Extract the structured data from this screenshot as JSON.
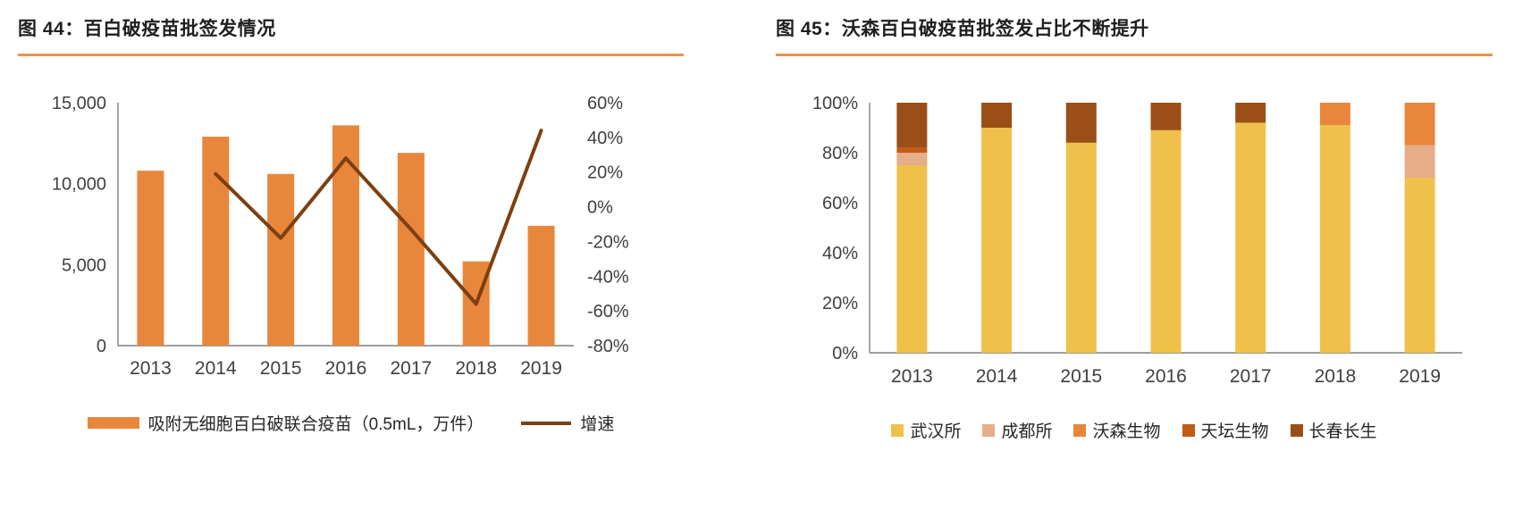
{
  "chart_data": [
    {
      "type": "bar",
      "combo": "bar+line",
      "title": "图 44：百白破疫苗批签发情况",
      "categories": [
        "2013",
        "2014",
        "2015",
        "2016",
        "2017",
        "2018",
        "2019"
      ],
      "bar_series": {
        "name": "吸附无细胞百白破联合疫苗（0.5mL，万件）",
        "values": [
          10800,
          12900,
          10600,
          13600,
          11900,
          5200,
          7400
        ],
        "color": "#E8863C",
        "axis": "left"
      },
      "line_series": {
        "name": "增速",
        "values": [
          null,
          19,
          -18,
          28,
          -13,
          -56,
          44
        ],
        "unit": "%",
        "color": "#7E3F10",
        "axis": "right"
      },
      "left_axis": {
        "min": 0,
        "max": 15000,
        "tick_values": [
          0,
          5000,
          10000,
          15000
        ],
        "tick_labels": [
          "0",
          "5,000",
          "10,000",
          "15,000"
        ]
      },
      "right_axis": {
        "min": -80,
        "max": 60,
        "tick_values": [
          -80,
          -60,
          -40,
          -20,
          0,
          20,
          40,
          60
        ],
        "tick_labels": [
          "-80%",
          "-60%",
          "-40%",
          "-20%",
          "0%",
          "20%",
          "40%",
          "60%"
        ]
      },
      "grid": false,
      "legend_position": "bottom"
    },
    {
      "type": "bar",
      "subtype": "stacked-100",
      "title": "图 45：沃森百白破疫苗批签发占比不断提升",
      "categories": [
        "2013",
        "2014",
        "2015",
        "2016",
        "2017",
        "2018",
        "2019"
      ],
      "series": [
        {
          "name": "武汉所",
          "color": "#F0C14A",
          "values": [
            75,
            90,
            84,
            89,
            92,
            91,
            70
          ]
        },
        {
          "name": "成都所",
          "color": "#E5AD88",
          "values": [
            5,
            0,
            0,
            0,
            0,
            0,
            13
          ]
        },
        {
          "name": "沃森生物",
          "color": "#E8863C",
          "values": [
            0,
            0,
            0,
            0,
            0,
            9,
            17
          ]
        },
        {
          "name": "天坛生物",
          "color": "#C25B15",
          "values": [
            2,
            0,
            0,
            0,
            0,
            0,
            0
          ]
        },
        {
          "name": "长春长生",
          "color": "#9B4F17",
          "values": [
            18,
            10,
            16,
            11,
            8,
            0,
            0
          ]
        }
      ],
      "y_axis": {
        "min": 0,
        "max": 100,
        "tick_values": [
          0,
          20,
          40,
          60,
          80,
          100
        ],
        "tick_labels": [
          "0%",
          "20%",
          "40%",
          "60%",
          "80%",
          "100%"
        ]
      },
      "grid": false,
      "legend_position": "bottom"
    }
  ],
  "style": {
    "title_rule_color": "#E8924F",
    "axis_color": "#7f7f7f",
    "tick_text_color": "#404040"
  }
}
